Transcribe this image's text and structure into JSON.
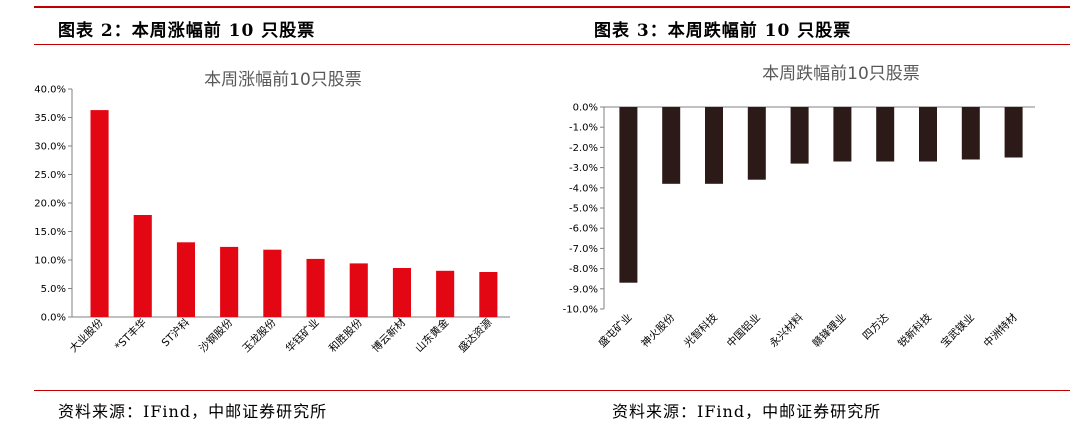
{
  "figures": [
    {
      "title": "图表 2：本周涨幅前 10 只股票",
      "source": "资料来源：IFind，中邮证券研究所"
    },
    {
      "title": "图表 3：本周跌幅前 10 只股票",
      "source": "资料来源：IFind，中邮证券研究所"
    }
  ],
  "colors": {
    "rise": "#e30613",
    "fall": "#2b1a17",
    "rule": "#c00000"
  },
  "chart_data": [
    {
      "type": "bar",
      "title": "本周涨幅前10只股票",
      "categories": [
        "大业股份",
        "*ST丰华",
        "ST沪科",
        "沙钢股份",
        "玉龙股份",
        "华钰矿业",
        "和胜股份",
        "博云新材",
        "山东黄金",
        "盛达资源"
      ],
      "values": [
        36.3,
        17.9,
        13.1,
        12.3,
        11.8,
        10.2,
        9.4,
        8.6,
        8.1,
        7.9
      ],
      "ylim": [
        0,
        40
      ],
      "yticks": [
        "0.0%",
        "5.0%",
        "10.0%",
        "15.0%",
        "20.0%",
        "25.0%",
        "30.0%",
        "35.0%",
        "40.0%"
      ],
      "xlabel": "",
      "ylabel": "",
      "grid": false
    },
    {
      "type": "bar",
      "title": "本周跌幅前10只股票",
      "categories": [
        "盛屯矿业",
        "神火股份",
        "光智科技",
        "中国铝业",
        "永兴材料",
        "赣锋锂业",
        "四方达",
        "锐新科技",
        "宝武镁业",
        "中洲特材"
      ],
      "values": [
        -8.7,
        -3.8,
        -3.8,
        -3.6,
        -2.8,
        -2.7,
        -2.7,
        -2.7,
        -2.6,
        -2.5
      ],
      "ylim": [
        -10,
        0
      ],
      "yticks": [
        "0.0%",
        "-1.0%",
        "-2.0%",
        "-3.0%",
        "-4.0%",
        "-5.0%",
        "-6.0%",
        "-7.0%",
        "-8.0%",
        "-9.0%",
        "-10.0%"
      ],
      "xlabel": "",
      "ylabel": "",
      "grid": false
    }
  ]
}
